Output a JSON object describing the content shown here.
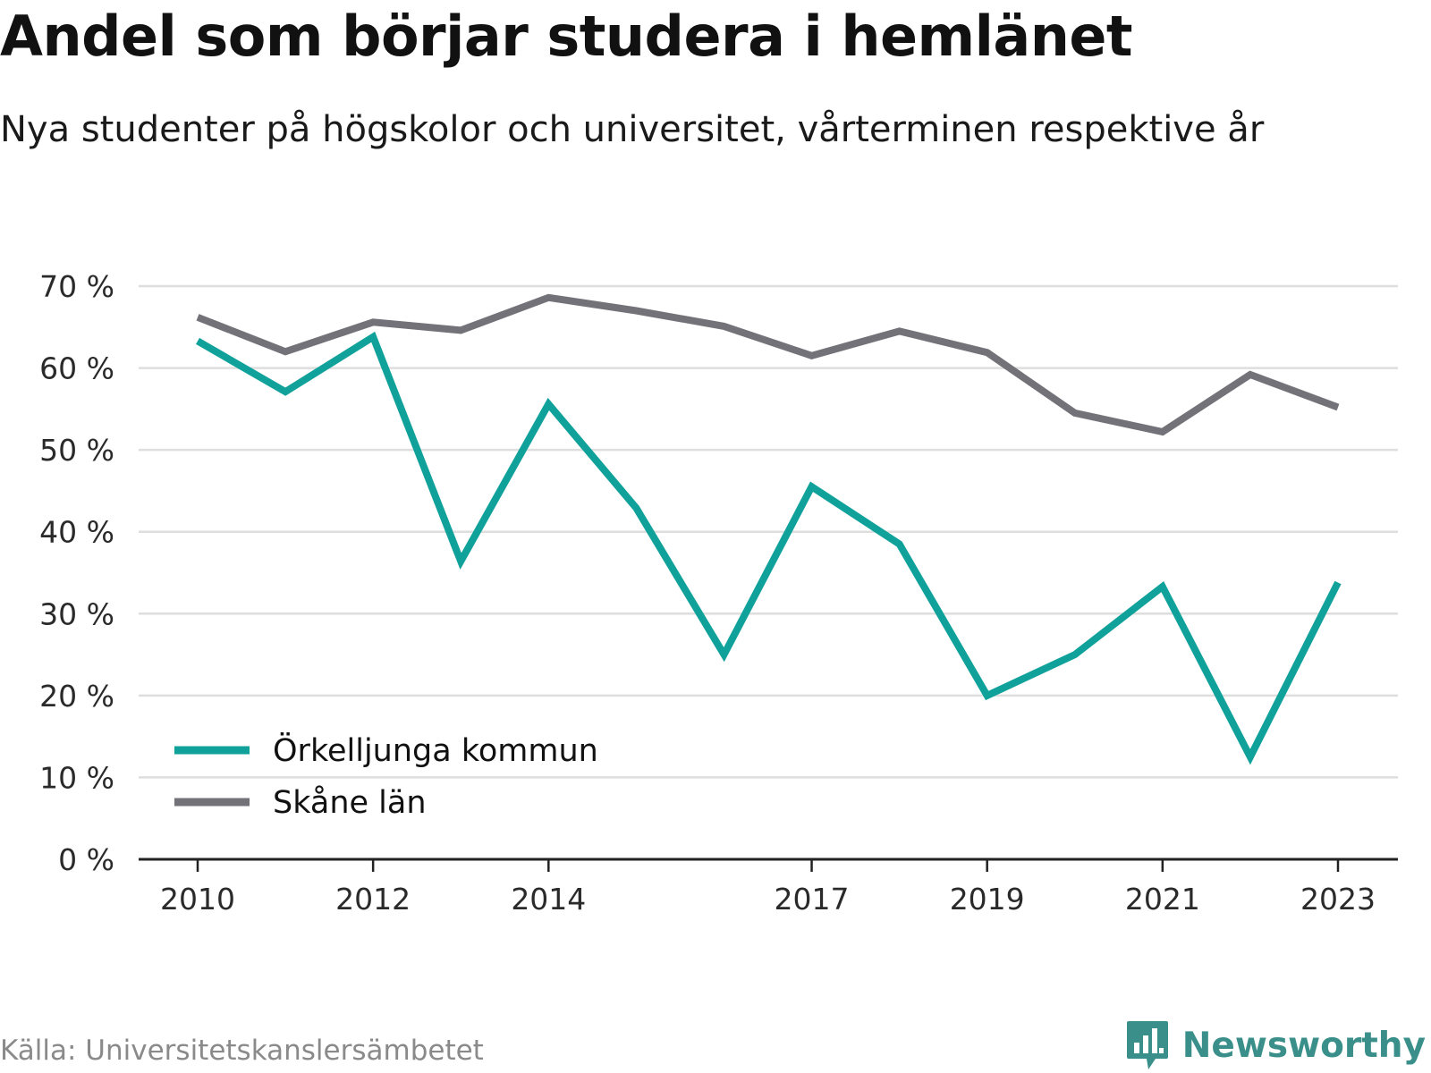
{
  "header": {
    "title": "Andel som börjar studera i hemlänet",
    "subtitle": "Nya studenter på högskolor och universitet, vårterminen respektive år"
  },
  "footer": {
    "source": "Källa: Universitetskanslersämbetet",
    "brand": "Newsworthy",
    "brand_icon": "bar-chart-speech-bubble-icon"
  },
  "chart_data": {
    "type": "line",
    "x": [
      2010,
      2011,
      2012,
      2013,
      2014,
      2015,
      2016,
      2017,
      2018,
      2019,
      2020,
      2021,
      2022,
      2023
    ],
    "x_tick_labels": [
      "2010",
      "2012",
      "2014",
      "2017",
      "2019",
      "2021",
      "2023"
    ],
    "y_tick_labels": [
      "0 %",
      "10 %",
      "20 %",
      "30 %",
      "40 %",
      "50 %",
      "60 %",
      "70 %"
    ],
    "ylim": [
      0,
      70
    ],
    "grid": true,
    "legend_position": "bottom-left",
    "series": [
      {
        "name": "Örkelljunga kommun",
        "color": "#10a29a",
        "values": [
          63.3,
          57.1,
          63.8,
          36.4,
          55.6,
          42.9,
          25.0,
          45.5,
          38.5,
          20.0,
          25.0,
          33.3,
          12.5,
          33.8
        ]
      },
      {
        "name": "Skåne län",
        "color": "#737278",
        "values": [
          66.2,
          62.0,
          65.6,
          64.6,
          68.6,
          67.0,
          65.1,
          61.5,
          64.5,
          61.9,
          54.5,
          52.2,
          59.2,
          55.2
        ]
      }
    ]
  }
}
